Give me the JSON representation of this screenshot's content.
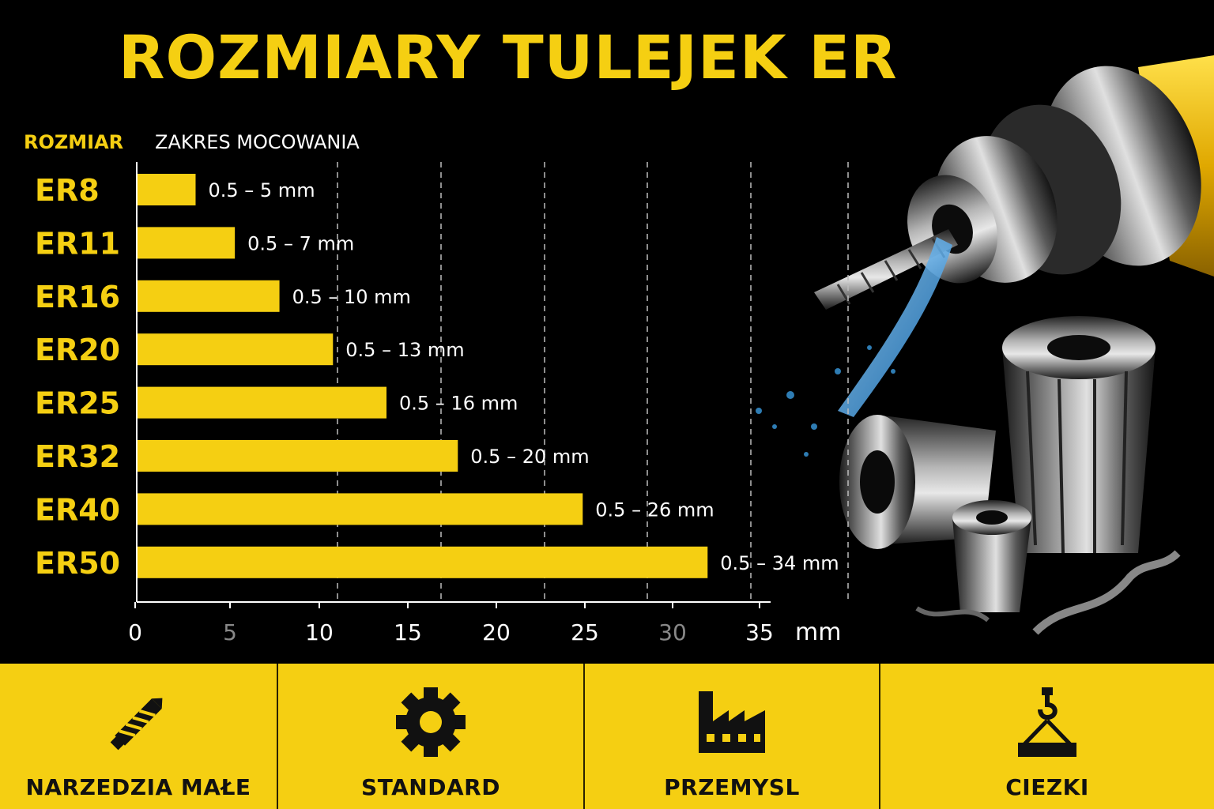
{
  "title": "ROZMIARY TULEJEK ER",
  "headers": {
    "size": "ROZMIAR",
    "range": "ZAKRES MOCOWANIA"
  },
  "colors": {
    "accent": "#f5cf12",
    "background": "#000000",
    "grid": "#bdbdbd"
  },
  "chart_data": {
    "type": "bar",
    "orientation": "horizontal",
    "categories": [
      "ER8",
      "ER11",
      "ER16",
      "ER20",
      "ER25",
      "ER32",
      "ER40",
      "ER50"
    ],
    "series": [
      {
        "values": [
          3.3,
          5.5,
          8,
          11,
          14,
          18,
          25,
          32
        ]
      }
    ],
    "data_labels": [
      "0.5 – 5 mm",
      "0.5 – 7 mm",
      "0.5 – 10 mm",
      "0.5 – 13 mm",
      "0.5 – 16 mm",
      "0.5 – 20 mm",
      "0.5 – 26 mm",
      "0.5 – 34 mm"
    ],
    "xlim": [
      0,
      35
    ],
    "x_ticks": [
      0,
      5,
      10,
      15,
      20,
      25,
      30,
      35
    ],
    "x_unit": "mm",
    "grid": "vertical dashed"
  },
  "footer": {
    "categories": [
      {
        "label": "NARZEDZIA MAŁE",
        "icon": "drill-bit-icon"
      },
      {
        "label": "STANDARD",
        "icon": "gear-icon"
      },
      {
        "label": "PRZEMYSL",
        "icon": "factory-icon"
      },
      {
        "label": "CIEZKI",
        "icon": "crane-hook-icon"
      }
    ]
  }
}
